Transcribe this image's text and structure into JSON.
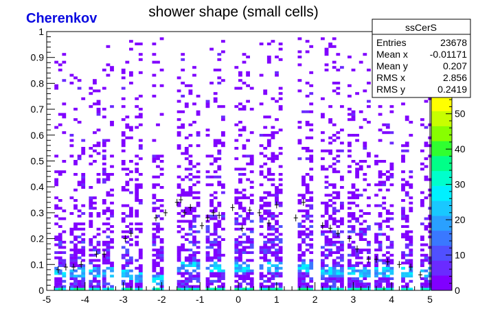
{
  "canvas_label": "Cherenkov",
  "chart_data": {
    "type": "heatmap",
    "title": "shower shape (small cells)",
    "xlabel": "",
    "ylabel": "",
    "xlim": [
      -5,
      5
    ],
    "ylim": [
      0,
      1
    ],
    "x_ticks": [
      "-5",
      "-4",
      "-3",
      "-2",
      "-1",
      "0",
      "1",
      "2",
      "3",
      "4",
      "5"
    ],
    "y_ticks": [
      "0",
      "0.1",
      "0.2",
      "0.3",
      "0.4",
      "0.5",
      "0.6",
      "0.7",
      "0.8",
      "0.9",
      "1"
    ],
    "colorbar": {
      "range": [
        0,
        55
      ],
      "ticks": [
        "0",
        "10",
        "20",
        "30",
        "40",
        "50"
      ],
      "colors": [
        "#8000ff",
        "#6a2bff",
        "#5050ff",
        "#3a78ff",
        "#2aa0ff",
        "#19c8ff",
        "#00f0ff",
        "#00ffcc",
        "#00ff88",
        "#30ff30",
        "#88ff00",
        "#c8ff00",
        "#ffff00"
      ]
    },
    "columns": [
      {
        "x": -4.8,
        "w": 0.28,
        "ytop": 0.93,
        "dense_top": 0.2,
        "band": 0.08
      },
      {
        "x": -4.4,
        "w": 0.35,
        "ytop": 0.85,
        "dense_top": 0.22,
        "band": 0.08
      },
      {
        "x": -3.9,
        "w": 0.28,
        "ytop": 0.82,
        "dense_top": 0.2,
        "band": 0.08
      },
      {
        "x": -3.55,
        "w": 0.3,
        "ytop": 0.95,
        "dense_top": 0.22,
        "band": 0.08
      },
      {
        "x": -3.05,
        "w": 0.22,
        "ytop": 0.97,
        "dense_top": 0.24,
        "band": 0.07
      },
      {
        "x": -2.7,
        "w": 0.2,
        "ytop": 0.97,
        "dense_top": 0.28,
        "band": 0.06
      },
      {
        "x": -2.25,
        "w": 0.28,
        "ytop": 0.98,
        "dense_top": 0.3,
        "band": 0.05
      },
      {
        "x": -1.6,
        "w": 0.6,
        "ytop": 0.98,
        "dense_top": 0.3,
        "band": 0.1
      },
      {
        "x": -0.85,
        "w": 0.5,
        "ytop": 0.98,
        "dense_top": 0.3,
        "band": 0.1
      },
      {
        "x": -0.1,
        "w": 0.45,
        "ytop": 0.98,
        "dense_top": 0.3,
        "band": 0.1
      },
      {
        "x": 0.55,
        "w": 0.6,
        "ytop": 0.98,
        "dense_top": 0.3,
        "band": 0.1
      },
      {
        "x": 1.55,
        "w": 0.4,
        "ytop": 0.98,
        "dense_top": 0.3,
        "band": 0.1
      },
      {
        "x": 2.15,
        "w": 0.55,
        "ytop": 0.98,
        "dense_top": 0.25,
        "band": 0.08
      },
      {
        "x": 2.85,
        "w": 0.6,
        "ytop": 0.92,
        "dense_top": 0.28,
        "band": 0.08
      },
      {
        "x": 3.55,
        "w": 0.5,
        "ytop": 0.88,
        "dense_top": 0.25,
        "band": 0.08
      },
      {
        "x": 4.25,
        "w": 0.3,
        "ytop": 0.85,
        "dense_top": 0.2,
        "band": 0.08
      },
      {
        "x": 4.75,
        "w": 0.25,
        "ytop": 0.85,
        "dense_top": 0.15,
        "band": 0.08
      }
    ],
    "profile_points": [
      {
        "x": -4.7,
        "y": 0.08
      },
      {
        "x": -4.5,
        "y": 0.09
      },
      {
        "x": -4.3,
        "y": 0.09
      },
      {
        "x": -4.1,
        "y": 0.1
      },
      {
        "x": -3.7,
        "y": 0.14
      },
      {
        "x": -3.5,
        "y": 0.14
      },
      {
        "x": -2.95,
        "y": 0.2
      },
      {
        "x": -2.8,
        "y": 0.22
      },
      {
        "x": -2.15,
        "y": 0.28
      },
      {
        "x": -1.9,
        "y": 0.3
      },
      {
        "x": -1.6,
        "y": 0.34
      },
      {
        "x": -1.5,
        "y": 0.35
      },
      {
        "x": -1.4,
        "y": 0.3
      },
      {
        "x": -1.25,
        "y": 0.32
      },
      {
        "x": -0.95,
        "y": 0.25
      },
      {
        "x": -0.8,
        "y": 0.28
      },
      {
        "x": -0.65,
        "y": 0.3
      },
      {
        "x": -0.5,
        "y": 0.29
      },
      {
        "x": -0.15,
        "y": 0.32
      },
      {
        "x": 0.1,
        "y": 0.24
      },
      {
        "x": 0.3,
        "y": 0.31
      },
      {
        "x": 0.55,
        "y": 0.3
      },
      {
        "x": 0.8,
        "y": 0.26
      },
      {
        "x": 1.0,
        "y": 0.33
      },
      {
        "x": 1.5,
        "y": 0.28
      },
      {
        "x": 1.7,
        "y": 0.34
      },
      {
        "x": 2.2,
        "y": 0.25
      },
      {
        "x": 2.4,
        "y": 0.24
      },
      {
        "x": 2.6,
        "y": 0.22
      },
      {
        "x": 2.9,
        "y": 0.2
      },
      {
        "x": 3.1,
        "y": 0.16
      },
      {
        "x": 3.4,
        "y": 0.12
      },
      {
        "x": 3.6,
        "y": 0.12
      },
      {
        "x": 3.9,
        "y": 0.11
      },
      {
        "x": 4.2,
        "y": 0.1
      },
      {
        "x": 4.5,
        "y": 0.09
      },
      {
        "x": 4.75,
        "y": 0.06
      }
    ]
  },
  "stats_box": {
    "name": "ssCerS",
    "rows": [
      {
        "label": "Entries",
        "value": "23678"
      },
      {
        "label": "Mean x",
        "value": "-0.01171"
      },
      {
        "label": "Mean y",
        "value": "0.207"
      },
      {
        "label": "RMS x",
        "value": "2.856"
      },
      {
        "label": "RMS y",
        "value": "0.2419"
      }
    ]
  }
}
